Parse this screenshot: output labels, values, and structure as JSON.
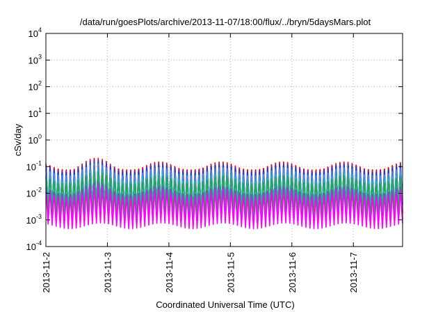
{
  "chart_data": {
    "type": "line",
    "title": "/data/run/goesPlots/archive/2013-11-07/18:00/flux/../bryn/5daysMars.plot",
    "xlabel": "Coordinated Universal Time (UTC)",
    "ylabel": "cSv/day",
    "yscale": "log",
    "ylim": [
      0.0001,
      10000
    ],
    "y_ticks": [
      {
        "value": 0.0001,
        "base": "10",
        "exp": "-4"
      },
      {
        "value": 0.001,
        "base": "10",
        "exp": "-3"
      },
      {
        "value": 0.01,
        "base": "10",
        "exp": "-2"
      },
      {
        "value": 0.1,
        "base": "10",
        "exp": "-1"
      },
      {
        "value": 1,
        "base": "10",
        "exp": "0"
      },
      {
        "value": 10,
        "base": "10",
        "exp": "1"
      },
      {
        "value": 100,
        "base": "10",
        "exp": "2"
      },
      {
        "value": 1000,
        "base": "10",
        "exp": "3"
      },
      {
        "value": 10000,
        "base": "10",
        "exp": "4"
      }
    ],
    "x_ticks": [
      "2013-11-2",
      "2013-11-3",
      "2013-11-4",
      "2013-11-5",
      "2013-11-6",
      "2013-11-7"
    ],
    "xlim_days": [
      0,
      5.8
    ],
    "grid": true,
    "legend": "none",
    "orbit_period_days": 0.0655,
    "series": [
      {
        "color": "#ff0000",
        "peak": 0.1,
        "trough": 0.0015
      },
      {
        "color": "#1f3ccf",
        "peak": 0.085,
        "trough": 0.003
      },
      {
        "color": "#3f8fe0",
        "peak": 0.06,
        "trough": 0.0035
      },
      {
        "color": "#00c8d0",
        "peak": 0.035,
        "trough": 0.0045
      },
      {
        "color": "#2aa64a",
        "peak": 0.03,
        "trough": 0.0018
      },
      {
        "color": "#9a3bd0",
        "peak": 0.012,
        "trough": 0.0009
      },
      {
        "color": "#ff00ff",
        "peak": 0.009,
        "trough": 0.0006
      }
    ]
  }
}
